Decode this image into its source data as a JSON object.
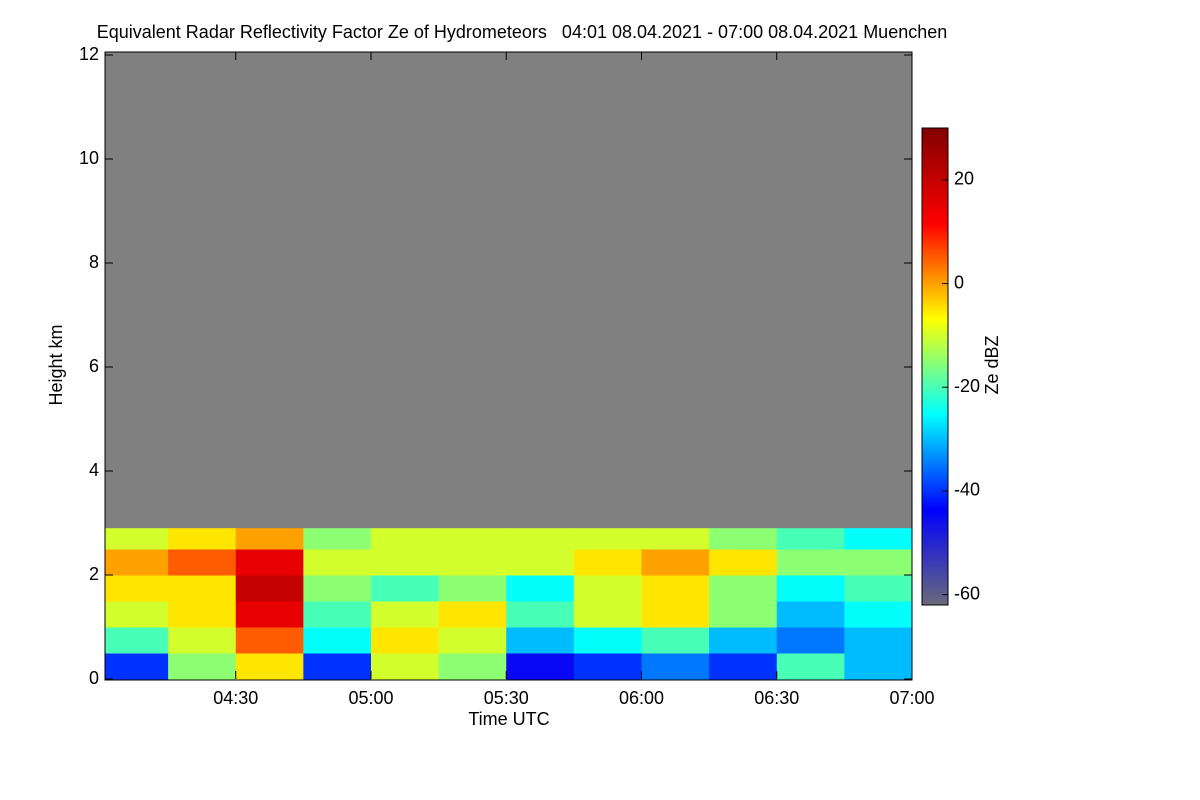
{
  "chart_data": {
    "type": "heatmap",
    "title": "Equivalent Radar Reflectivity Factor Ze of Hydrometeors   04:01 08.04.2021 - 07:00 08.04.2021 Muenchen",
    "xlabel": "Time UTC",
    "ylabel": "Height km",
    "colorbar_label": "Ze dBZ",
    "background": "#808080",
    "x_edges": [
      241,
      255,
      270,
      285,
      300,
      315,
      330,
      345,
      360,
      375,
      390,
      405,
      420
    ],
    "y_edges": [
      0,
      0.5,
      1,
      1.5,
      2,
      2.5,
      2.9
    ],
    "values": [
      [
        -40,
        -15,
        -5,
        -40,
        -10,
        -15,
        -45,
        -40,
        -35,
        -40,
        -20,
        -30
      ],
      [
        -20,
        -10,
        5,
        -25,
        -5,
        -10,
        -30,
        -25,
        -20,
        -30,
        -35,
        -30
      ],
      [
        -10,
        -5,
        15,
        -20,
        -10,
        -5,
        -20,
        -10,
        -5,
        -15,
        -30,
        -25
      ],
      [
        -5,
        -5,
        20,
        -15,
        -20,
        -15,
        -25,
        -10,
        -5,
        -15,
        -25,
        -20
      ],
      [
        0,
        5,
        15,
        -10,
        -10,
        -10,
        -10,
        -5,
        0,
        -5,
        -15,
        -15
      ],
      [
        -10,
        -5,
        0,
        -15,
        -10,
        -10,
        -10,
        -10,
        -10,
        -15,
        -20,
        -25
      ]
    ],
    "xlim": [
      241,
      420
    ],
    "xticks": [
      {
        "value": 270,
        "label": "04:30"
      },
      {
        "value": 300,
        "label": "05:00"
      },
      {
        "value": 330,
        "label": "05:30"
      },
      {
        "value": 360,
        "label": "06:00"
      },
      {
        "value": 390,
        "label": "06:30"
      },
      {
        "value": 420,
        "label": "07:00"
      }
    ],
    "ylim": [
      0,
      12
    ],
    "yticks": [
      0,
      2,
      4,
      6,
      8,
      10,
      12
    ],
    "clim": [
      -62,
      30
    ],
    "cticks": [
      -60,
      -40,
      -20,
      0,
      20
    ],
    "colorscale": [
      "#6a6a7a",
      "#0000ff",
      "#00ffff",
      "#ffff00",
      "#ff0000",
      "#800000"
    ]
  }
}
